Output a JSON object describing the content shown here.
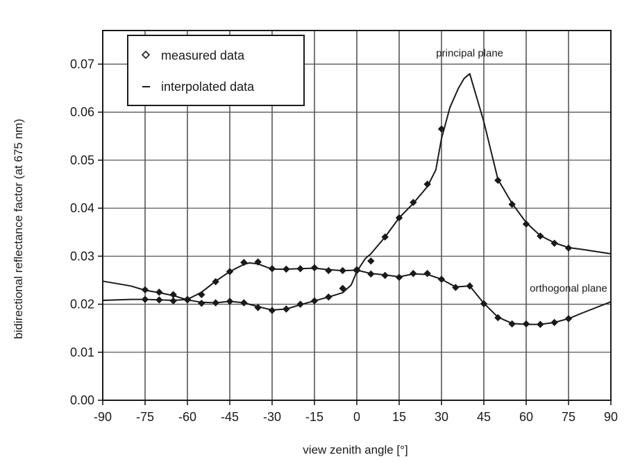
{
  "chart_data": {
    "type": "line",
    "title": "",
    "xlabel": "view zenith angle [°]",
    "ylabel": "bidirectional reflectance factor  (at 675 nm)",
    "xlim": [
      -90,
      90
    ],
    "ylim": [
      0.0,
      0.077
    ],
    "x_ticks": [
      -90,
      -75,
      -60,
      -45,
      -30,
      -15,
      0,
      15,
      30,
      45,
      60,
      75,
      90
    ],
    "x_tick_labels": [
      "-90",
      "-75",
      "-60",
      "-45",
      "-30",
      "-15",
      "0",
      "15",
      "30",
      "45",
      "60",
      "75",
      "90"
    ],
    "y_ticks": [
      0.0,
      0.01,
      0.02,
      0.03,
      0.04,
      0.05,
      0.06,
      0.07
    ],
    "y_tick_labels": [
      "0.00",
      "0.01",
      "0.02",
      "0.03",
      "0.04",
      "0.05",
      "0.06",
      "0.07"
    ],
    "grid": true,
    "legend": {
      "placement": "top-left",
      "entries": [
        {
          "marker": "diamond",
          "label": "measured data"
        },
        {
          "marker": "line",
          "label": "interpolated data"
        }
      ]
    },
    "annotations": [
      {
        "text": "principal plane",
        "x": 40,
        "y": 0.0716
      },
      {
        "text": "orthogonal plane",
        "x": 75,
        "y": 0.0226
      }
    ],
    "series": [
      {
        "line_x": [
          -90,
          -80,
          -75,
          -70,
          -65,
          -60,
          -55,
          -50,
          -45,
          -40,
          -35,
          -30,
          -25,
          -20,
          -15,
          -10,
          -5,
          -2,
          0,
          3,
          5,
          10,
          15,
          20,
          25,
          28,
          30,
          33,
          36,
          38,
          40,
          42,
          45,
          50,
          55,
          60,
          65,
          70,
          75,
          80,
          90
        ],
        "line_y": [
          0.0248,
          0.0238,
          0.0229,
          0.0224,
          0.0218,
          0.0209,
          0.0204,
          0.0203,
          0.0206,
          0.0203,
          0.0195,
          0.0188,
          0.019,
          0.0199,
          0.0207,
          0.0215,
          0.0224,
          0.024,
          0.0268,
          0.0295,
          0.0305,
          0.034,
          0.038,
          0.041,
          0.0445,
          0.048,
          0.0545,
          0.061,
          0.065,
          0.067,
          0.068,
          0.064,
          0.058,
          0.046,
          0.041,
          0.037,
          0.0343,
          0.0328,
          0.0318,
          0.0314,
          0.0305
        ],
        "measured_x": [
          -75,
          -70,
          -65,
          -60,
          -55,
          -50,
          -45,
          -40,
          -35,
          -30,
          -25,
          -20,
          -15,
          -10,
          -5,
          0,
          5,
          10,
          15,
          20,
          25,
          30,
          50,
          55,
          60,
          65,
          70,
          75
        ],
        "measured_y": [
          0.023,
          0.0225,
          0.022,
          0.021,
          0.0202,
          0.0203,
          0.0206,
          0.0203,
          0.0193,
          0.0187,
          0.019,
          0.02,
          0.0207,
          0.0215,
          0.0233,
          0.027,
          0.029,
          0.034,
          0.038,
          0.0412,
          0.045,
          0.0565,
          0.0458,
          0.0408,
          0.0367,
          0.0342,
          0.0327,
          0.0317
        ]
      },
      {
        "line_x": [
          -90,
          -80,
          -75,
          -70,
          -65,
          -60,
          -55,
          -50,
          -45,
          -40,
          -38,
          -35,
          -30,
          -25,
          -20,
          -15,
          -10,
          -5,
          0,
          5,
          10,
          15,
          20,
          25,
          30,
          35,
          40,
          45,
          50,
          55,
          60,
          65,
          70,
          75,
          80,
          90
        ],
        "line_y": [
          0.0208,
          0.021,
          0.021,
          0.0209,
          0.0208,
          0.021,
          0.0225,
          0.0248,
          0.0268,
          0.0283,
          0.0286,
          0.0284,
          0.0273,
          0.0273,
          0.0274,
          0.0275,
          0.0272,
          0.027,
          0.0271,
          0.0264,
          0.0261,
          0.0257,
          0.0263,
          0.0262,
          0.0252,
          0.0236,
          0.0238,
          0.0202,
          0.0173,
          0.016,
          0.0158,
          0.0158,
          0.0162,
          0.017,
          0.0182,
          0.0205
        ],
        "measured_x": [
          -75,
          -70,
          -65,
          -60,
          -55,
          -50,
          -45,
          -40,
          -35,
          -30,
          -25,
          -20,
          -15,
          -10,
          -5,
          0,
          5,
          10,
          15,
          20,
          25,
          30,
          35,
          40,
          45,
          50,
          55,
          60,
          65,
          70,
          75
        ],
        "measured_y": [
          0.021,
          0.0209,
          0.0207,
          0.0209,
          0.022,
          0.0247,
          0.0268,
          0.0287,
          0.0288,
          0.0274,
          0.0273,
          0.0274,
          0.0276,
          0.027,
          0.027,
          0.0272,
          0.0263,
          0.026,
          0.0256,
          0.0264,
          0.0264,
          0.0252,
          0.0235,
          0.0238,
          0.0201,
          0.0172,
          0.0159,
          0.0159,
          0.0158,
          0.0162,
          0.017
        ]
      }
    ]
  }
}
